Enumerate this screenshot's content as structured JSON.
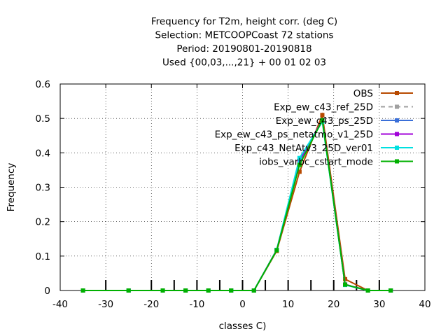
{
  "chart_data": {
    "type": "line",
    "title_lines": [
      "Frequency  for T2m, height corr. (deg C)",
      "Selection: METCOOPCoast     72 stations",
      "Period: 20190801-20190818",
      "Used {00,03,...,21} + 00 01 02 03"
    ],
    "xlabel": "classes C)",
    "ylabel": "Frequency",
    "xlim": [
      -40,
      40
    ],
    "ylim": [
      0,
      0.6
    ],
    "x_ticks": [
      -40,
      -30,
      -20,
      -10,
      0,
      10,
      20,
      30,
      40
    ],
    "y_ticks": [
      0,
      0.1,
      0.2,
      0.3,
      0.4,
      0.5,
      0.6
    ],
    "grid": true,
    "legend_position": "top-right",
    "class_edges": [
      -30,
      -20,
      -15,
      -10,
      -5,
      0,
      5,
      10,
      15,
      20,
      25,
      30
    ],
    "x": [
      -35,
      -25,
      -17.5,
      -12.5,
      -7.5,
      -2.5,
      2.5,
      7.5,
      12.5,
      17.5,
      22.5,
      27.5,
      32.5
    ],
    "series": [
      {
        "name": "OBS",
        "color": "#b84a00",
        "marker": "square",
        "values": [
          0,
          0,
          0,
          0,
          0,
          0,
          0,
          0.115,
          0.345,
          0.51,
          0.033,
          0,
          0
        ]
      },
      {
        "name": "Exp_ew_c43_ref_25D",
        "color": "#a0a0a0",
        "marker": "square",
        "dashed": true,
        "values": [
          0,
          0,
          0,
          0,
          0,
          0,
          0,
          0.118,
          0.37,
          0.495,
          0.018,
          0,
          0
        ]
      },
      {
        "name": "Exp_ew_c43_ps_25D",
        "color": "#3a6fd8",
        "marker": "square",
        "values": [
          0,
          0,
          0,
          0,
          0,
          0,
          0,
          0.118,
          0.375,
          0.495,
          0.017,
          0,
          0
        ]
      },
      {
        "name": "Exp_ew_c43_ps_netatmo_v1_25D",
        "color": "#a000d8",
        "marker": "square",
        "values": [
          0,
          0,
          0,
          0,
          0,
          0,
          0,
          0.118,
          0.378,
          0.495,
          0.017,
          0,
          0
        ]
      },
      {
        "name": "Exp_c43_NetAtv3_25D_ver01",
        "color": "#00e0e0",
        "marker": "square",
        "values": [
          0,
          0,
          0,
          0,
          0,
          0,
          0,
          0.118,
          0.385,
          0.49,
          0.016,
          0,
          0
        ]
      },
      {
        "name": "iobs_varbc_cstart_mode",
        "color": "#00b000",
        "marker": "square",
        "values": [
          0,
          0,
          0,
          0,
          0,
          0,
          0,
          0.117,
          0.365,
          0.495,
          0.017,
          0,
          0
        ]
      }
    ]
  }
}
